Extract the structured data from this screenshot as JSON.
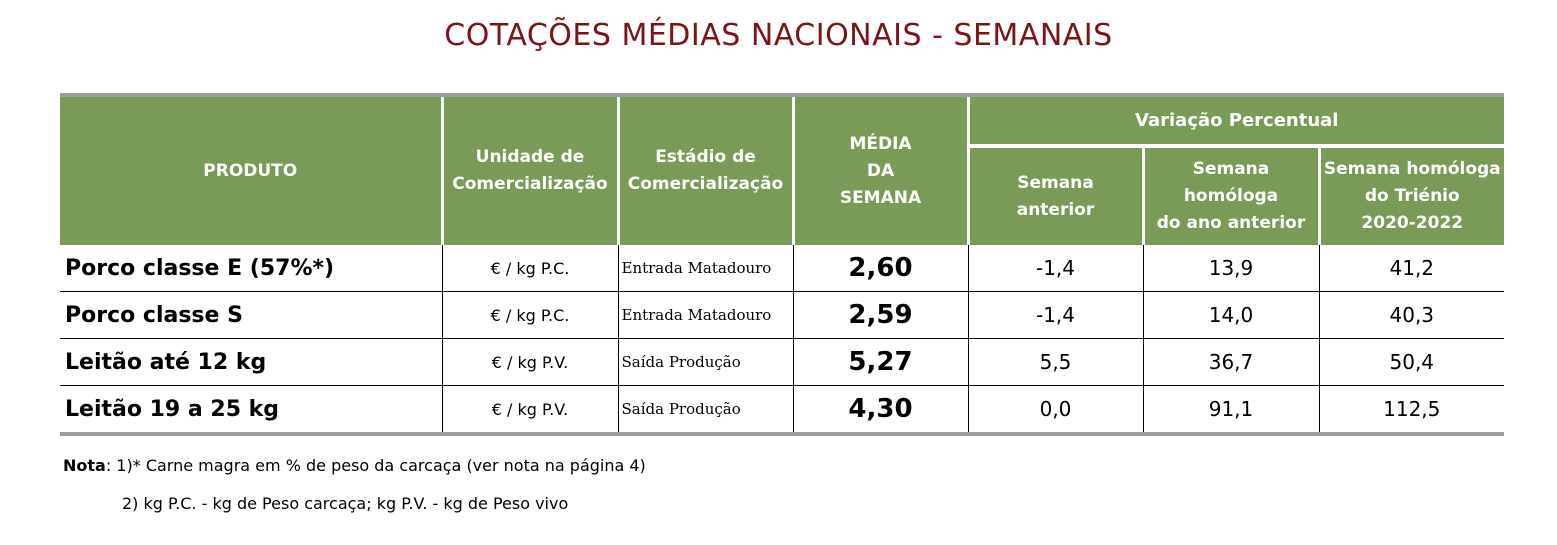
{
  "title": "COTAÇÕES MÉDIAS NACIONAIS - SEMANAIS",
  "headers": {
    "produto": "PRODUTO",
    "unidade_line1": "Unidade de",
    "unidade_line2": "Comercialização",
    "estadio_line1": "Estádio de",
    "estadio_line2": "Comercialização",
    "media_line1": "MÉDIA",
    "media_line2": "DA",
    "media_line3": "SEMANA",
    "variacao": "Variação Percentual",
    "semana_anterior_line1": "Semana",
    "semana_anterior_line2": "anterior",
    "homologa_ano_line1": "Semana homóloga",
    "homologa_ano_line2": "do ano anterior",
    "homologa_trienio_line1": "Semana homóloga",
    "homologa_trienio_line2": "do Triénio",
    "homologa_trienio_line3": "2020-2022"
  },
  "rows": [
    {
      "produto": "Porco classe E (57%*)",
      "unidade": "€ / kg P.C.",
      "estadio": "Entrada Matadouro",
      "media": "2,60",
      "semana_anterior": "-1,4",
      "homologa_ano": "13,9",
      "homologa_trienio": "41,2"
    },
    {
      "produto": "Porco classe S",
      "unidade": "€ / kg P.C.",
      "estadio": "Entrada Matadouro",
      "media": "2,59",
      "semana_anterior": "-1,4",
      "homologa_ano": "14,0",
      "homologa_trienio": "40,3"
    },
    {
      "produto": "Leitão até 12 kg",
      "unidade": "€ / kg P.V.",
      "estadio": "Saída Produção",
      "media": "5,27",
      "semana_anterior": "5,5",
      "homologa_ano": "36,7",
      "homologa_trienio": "50,4"
    },
    {
      "produto": "Leitão 19 a 25 kg",
      "unidade": "€ / kg P.V.",
      "estadio": "Saída Produção",
      "media": "4,30",
      "semana_anterior": "0,0",
      "homologa_ano": "91,1",
      "homologa_trienio": "112,5"
    }
  ],
  "notes": {
    "label": "Nota",
    "note1": ": 1)* Carne magra em % de peso da carcaça (ver nota na página 4)",
    "note2": "2) kg P.C. - kg de Peso carcaça; kg P.V. - kg de Peso vivo"
  },
  "colors": {
    "title": "#7b1416",
    "header_bg": "#7a9a57",
    "header_text": "#ffffff",
    "frame_gray": "#9e9e9e"
  }
}
